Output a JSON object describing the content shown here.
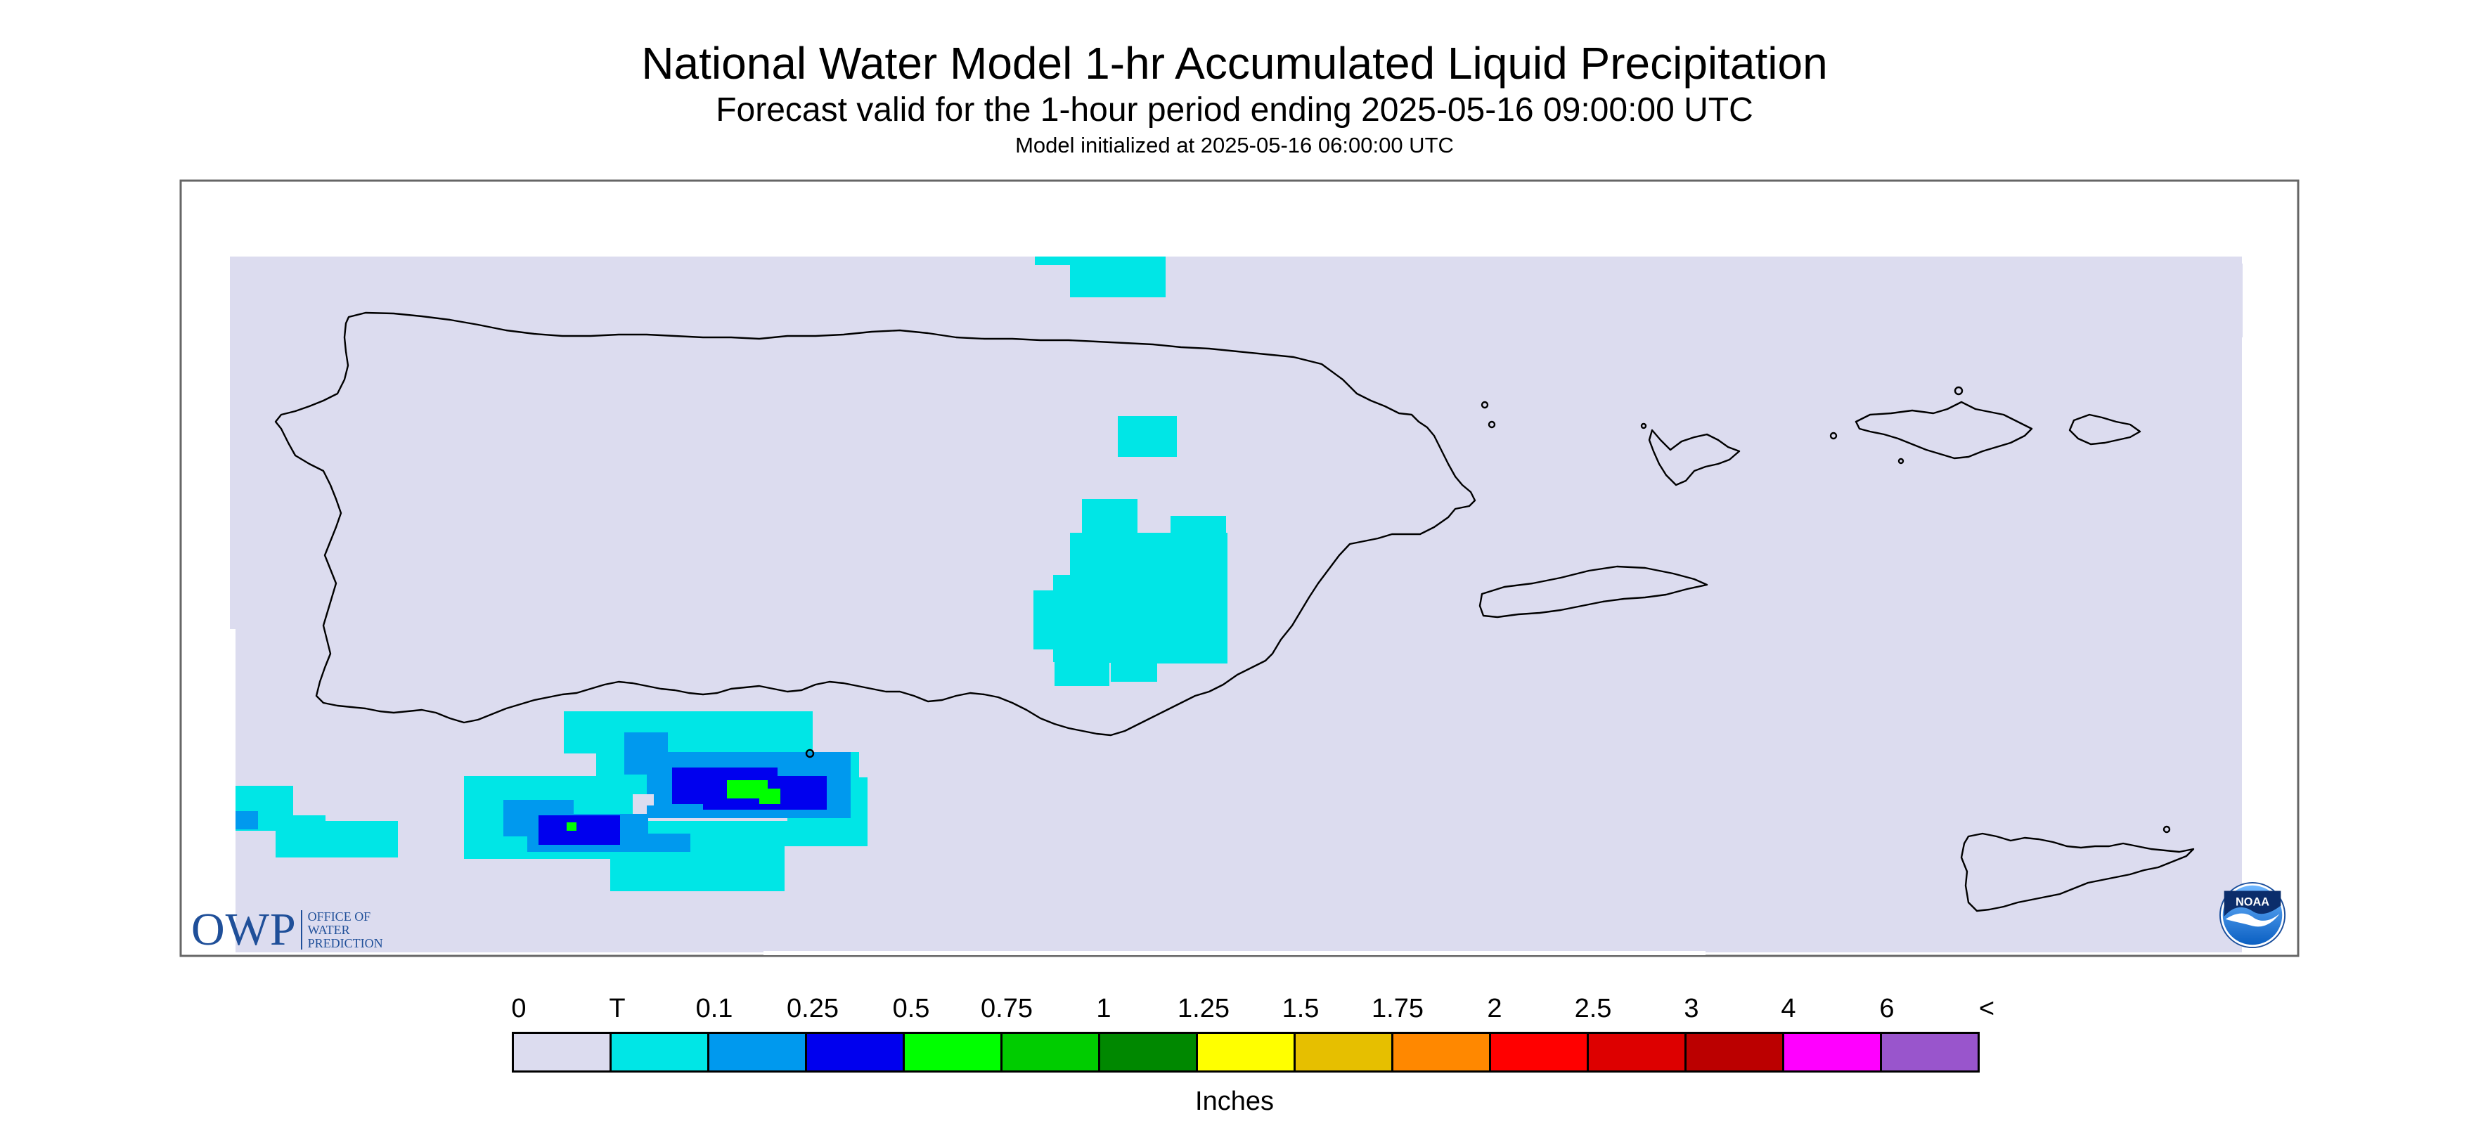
{
  "header": {
    "title": "National Water Model 1-hr Accumulated Liquid Precipitation",
    "subtitle": "Forecast valid for the 1-hour period ending 2025-05-16 09:00:00 UTC",
    "init": "Model initialized at 2025-05-16 06:00:00 UTC"
  },
  "map": {
    "background_color": "#dcdcef",
    "coast_color": "#000000",
    "islands": [
      "Puerto Rico",
      "Vieques",
      "Culebra",
      "St. Thomas",
      "St. John",
      "St. Croix"
    ]
  },
  "legend": {
    "ticks": [
      "0",
      "T",
      "0.1",
      "0.25",
      "0.5",
      "0.75",
      "1",
      "1.25",
      "1.5",
      "1.75",
      "2",
      "2.5",
      "3",
      "4",
      "6",
      "<"
    ],
    "colors": [
      "#dcdcef",
      "#00e6e6",
      "#0099ee",
      "#0000ee",
      "#00ff00",
      "#00cc00",
      "#008800",
      "#ffff00",
      "#e6bf00",
      "#ff8800",
      "#ff0000",
      "#dd0000",
      "#bb0000",
      "#ff00ff",
      "#9955cc"
    ],
    "unit": "Inches"
  },
  "logos": {
    "owp_main": "OWP",
    "owp_line1": "OFFICE OF",
    "owp_line2": "WATER",
    "owp_line3": "PREDICTION",
    "noaa_text": "NOAA",
    "owp_icon": "owp-logo-icon",
    "noaa_icon": "noaa-logo-icon"
  }
}
